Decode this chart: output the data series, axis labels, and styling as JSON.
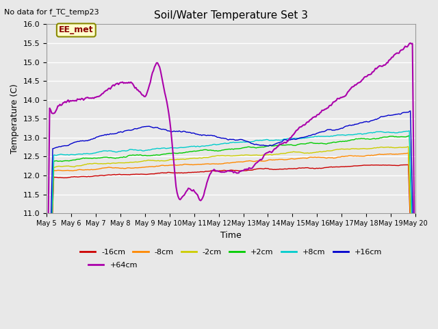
{
  "title": "Soil/Water Temperature Set 3",
  "subtitle": "No data for f_TC_temp23",
  "xlabel": "Time",
  "ylabel": "Temperature (C)",
  "ylim": [
    11.0,
    16.0
  ],
  "background_color": "#e8e8e8",
  "legend_label": "EE_met",
  "series_colors": {
    "-16cm": "#cc0000",
    "-8cm": "#ff8800",
    "-2cm": "#cccc00",
    "+2cm": "#00cc00",
    "+8cm": "#00cccc",
    "+16cm": "#0000cc",
    "+64cm": "#aa00aa"
  },
  "xtick_labels": [
    "May 5",
    "May 6",
    "May 7",
    "May 8",
    "May 9",
    "May 10",
    "May 11",
    "May 12",
    "May 13",
    "May 14",
    "May 15",
    "May 16",
    "May 17",
    "May 18",
    "May 19",
    "May 20"
  ],
  "ytick_vals": [
    11.0,
    11.5,
    12.0,
    12.5,
    13.0,
    13.5,
    14.0,
    14.5,
    15.0,
    15.5,
    16.0
  ]
}
